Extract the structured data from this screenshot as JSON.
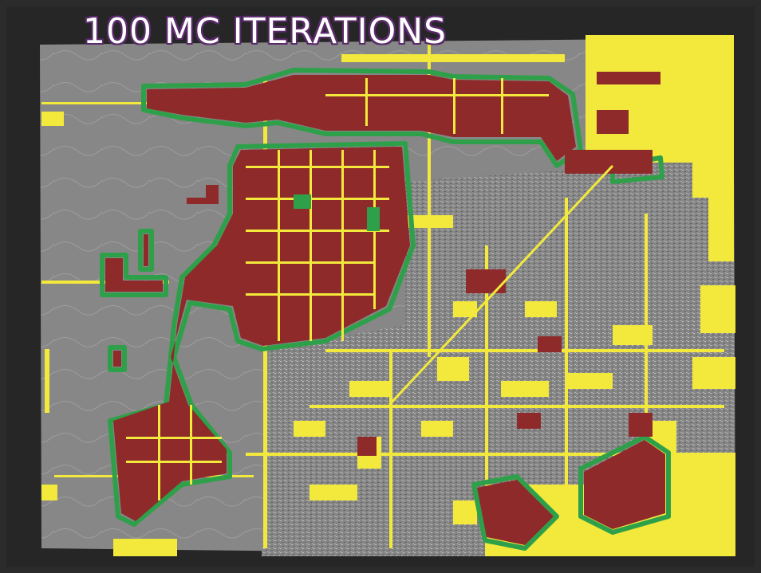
{
  "title": "100 MC ITERATIONS",
  "colors": {
    "background": "#262626",
    "terrain": "#858585",
    "terrain_texture_light": "#c2c2c2",
    "terrain_texture_dark": "#5e5e5e",
    "urban": "#f2e93c",
    "predicted_growth": "#8e2a2a",
    "growth_edge": "#2fa04a"
  },
  "map_layers": [
    "terrain-hillshade",
    "existing-urban",
    "predicted-urban-growth",
    "growth-probability-fringe"
  ]
}
